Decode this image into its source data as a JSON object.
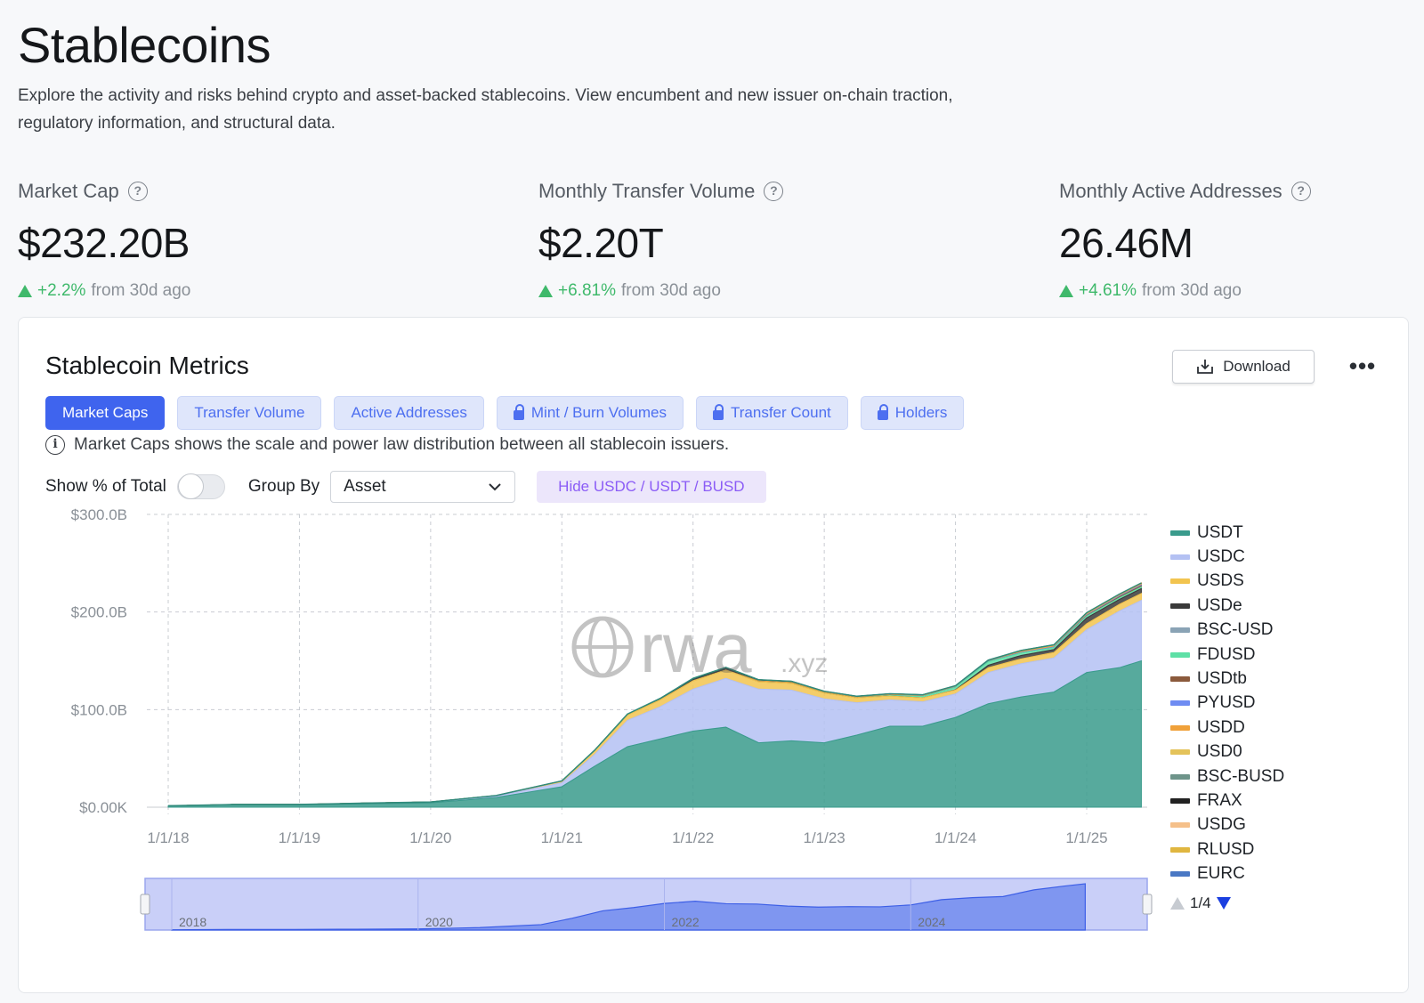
{
  "page": {
    "title": "Stablecoins",
    "description": "Explore the activity and risks behind crypto and asset-backed stablecoins. View encumbent and new issuer on-chain traction, regulatory information, and structural data."
  },
  "stats": [
    {
      "label": "Market Cap",
      "value": "$232.20B",
      "change": "+2.2%",
      "suffix": "from 30d ago"
    },
    {
      "label": "Monthly Transfer Volume",
      "value": "$2.20T",
      "change": "+6.81%",
      "suffix": "from 30d ago"
    },
    {
      "label": "Monthly Active Addresses",
      "value": "26.46M",
      "change": "+4.61%",
      "suffix": "from 30d ago"
    }
  ],
  "card": {
    "title": "Stablecoin Metrics",
    "download_label": "Download",
    "more_label": "•••",
    "tabs": [
      {
        "label": "Market Caps",
        "active": true,
        "locked": false
      },
      {
        "label": "Transfer Volume",
        "active": false,
        "locked": false
      },
      {
        "label": "Active Addresses",
        "active": false,
        "locked": false
      },
      {
        "label": "Mint / Burn Volumes",
        "active": false,
        "locked": true
      },
      {
        "label": "Transfer Count",
        "active": false,
        "locked": true
      },
      {
        "label": "Holders",
        "active": false,
        "locked": true
      }
    ],
    "info_text": "Market Caps shows the scale and power law distribution between all stablecoin issuers.",
    "show_pct_label": "Show % of Total",
    "show_pct_on": false,
    "group_by_label": "Group By",
    "group_by_value": "Asset",
    "hide_button_label": "Hide USDC / USDT / BUSD",
    "watermark": "rwa",
    "watermark_suffix": ".xyz",
    "pager_text": "1/4"
  },
  "chart_data": {
    "type": "area",
    "stacked": true,
    "x": [
      "2018-01",
      "2018-07",
      "2019-01",
      "2019-07",
      "2020-01",
      "2020-07",
      "2021-01",
      "2021-04",
      "2021-07",
      "2021-10",
      "2022-01",
      "2022-04",
      "2022-07",
      "2022-10",
      "2023-01",
      "2023-04",
      "2023-07",
      "2023-10",
      "2024-01",
      "2024-04",
      "2024-07",
      "2024-10",
      "2025-01",
      "2025-04",
      "2025-06"
    ],
    "series": [
      {
        "name": "USDT",
        "color": "#3a9b8c",
        "values": [
          1.5,
          2.5,
          2.5,
          3.5,
          4.5,
          10,
          21,
          42,
          62,
          70,
          78,
          82,
          66,
          68,
          66,
          74,
          83,
          83,
          92,
          106,
          113,
          118,
          138,
          143,
          150
        ]
      },
      {
        "name": "USDC",
        "color": "#b4c1f3",
        "values": [
          0,
          0.2,
          0.3,
          0.5,
          0.6,
          1.2,
          4,
          12,
          27,
          33,
          43,
          50,
          55,
          52,
          45,
          33,
          27,
          25,
          24,
          32,
          34,
          35,
          44,
          58,
          62
        ]
      },
      {
        "name": "USDS",
        "color": "#f2c44f",
        "values": [
          0,
          0.1,
          0.1,
          0.2,
          0.3,
          0.8,
          1.8,
          4,
          5.5,
          7,
          8.5,
          8.5,
          7.5,
          7,
          6,
          5,
          4,
          4,
          4,
          5,
          5,
          5.5,
          6,
          7,
          7
        ]
      },
      {
        "name": "USDe",
        "color": "#3a3a3a",
        "values": [
          0,
          0,
          0,
          0,
          0,
          0,
          0,
          0,
          0,
          0,
          0,
          0,
          0,
          0,
          0,
          0,
          0,
          0,
          0.3,
          2.5,
          3.5,
          3,
          6,
          5,
          5
        ]
      },
      {
        "name": "BSC-USD",
        "color": "#8aa3b5",
        "values": [
          0,
          0,
          0,
          0,
          0,
          0,
          0,
          0,
          0,
          0,
          0,
          0,
          0,
          0,
          0,
          0,
          0,
          0,
          0,
          0,
          0,
          0,
          0,
          0,
          0
        ]
      },
      {
        "name": "FDUSD",
        "color": "#5ee0a6",
        "values": [
          0,
          0,
          0,
          0,
          0,
          0,
          0,
          0,
          0,
          0,
          0,
          0,
          0,
          0,
          0,
          0,
          0.5,
          1.5,
          2.5,
          3.5,
          2.5,
          2,
          1.8,
          1.6,
          1.6
        ]
      },
      {
        "name": "USDtb",
        "color": "#8b5a3c",
        "values": [
          0,
          0,
          0,
          0,
          0,
          0,
          0,
          0,
          0,
          0,
          0,
          0,
          0,
          0,
          0,
          0,
          0,
          0,
          0,
          0,
          0,
          0,
          0.5,
          1,
          1.2
        ]
      },
      {
        "name": "PYUSD",
        "color": "#6f8cf2",
        "values": [
          0,
          0,
          0,
          0,
          0,
          0,
          0,
          0,
          0,
          0,
          0,
          0,
          0,
          0,
          0,
          0,
          0.1,
          0.2,
          0.3,
          0.4,
          0.6,
          0.6,
          0.6,
          0.8,
          0.9
        ]
      },
      {
        "name": "USDD",
        "color": "#f0a13a",
        "values": [
          0,
          0,
          0,
          0,
          0,
          0,
          0,
          0,
          0,
          0,
          0,
          0,
          0.7,
          0.7,
          0.7,
          0.7,
          0.7,
          0.7,
          0.7,
          0.7,
          0.7,
          0.7,
          0.7,
          0.7,
          0.7
        ]
      },
      {
        "name": "USD0",
        "color": "#e4c35a",
        "values": [
          0,
          0,
          0,
          0,
          0,
          0,
          0,
          0,
          0,
          0,
          0,
          0,
          0,
          0,
          0,
          0,
          0,
          0,
          0,
          0,
          0.8,
          1.2,
          1.2,
          0.6,
          0.5
        ]
      },
      {
        "name": "BSC-BUSD",
        "color": "#6e948a",
        "values": [
          0,
          0,
          0,
          0,
          0,
          0,
          0,
          0,
          0,
          0,
          0,
          0,
          0,
          0,
          0,
          0,
          0,
          0,
          0,
          0,
          0,
          0,
          0,
          0,
          0
        ]
      },
      {
        "name": "FRAX",
        "color": "#222222",
        "values": [
          0,
          0,
          0,
          0,
          0,
          0,
          0.1,
          0.4,
          0.9,
          1.5,
          2.5,
          2.7,
          1.4,
          1.3,
          1.1,
          1,
          1,
          0.8,
          0.7,
          0.6,
          0.5,
          0.4,
          0.4,
          0.4,
          0.4
        ]
      },
      {
        "name": "USDG",
        "color": "#f5c08a",
        "values": [
          0,
          0,
          0,
          0,
          0,
          0,
          0,
          0,
          0,
          0,
          0,
          0,
          0,
          0,
          0,
          0,
          0,
          0,
          0,
          0,
          0,
          0,
          0,
          0.1,
          0.2
        ]
      },
      {
        "name": "RLUSD",
        "color": "#e0b640",
        "values": [
          0,
          0,
          0,
          0,
          0,
          0,
          0,
          0,
          0,
          0,
          0,
          0,
          0,
          0,
          0,
          0,
          0,
          0,
          0,
          0,
          0,
          0,
          0.1,
          0.2,
          0.3
        ]
      },
      {
        "name": "EURC",
        "color": "#4a78c4",
        "values": [
          0,
          0,
          0,
          0,
          0,
          0,
          0,
          0,
          0,
          0,
          0,
          0,
          0,
          0,
          0,
          0,
          0,
          0,
          0,
          0,
          0,
          0,
          0,
          0,
          0
        ]
      }
    ],
    "y_ticks": [
      "$300.0B",
      "$200.0B",
      "$100.0B",
      "$0.00K"
    ],
    "ylim": [
      0,
      300
    ],
    "x_ticks": [
      "1/1/18",
      "1/1/19",
      "1/1/20",
      "1/1/21",
      "1/1/22",
      "1/1/23",
      "1/1/24",
      "1/1/25"
    ],
    "navigator_labels": [
      "2018",
      "2020",
      "2022",
      "2024"
    ],
    "grid": true,
    "legend_position": "right"
  }
}
